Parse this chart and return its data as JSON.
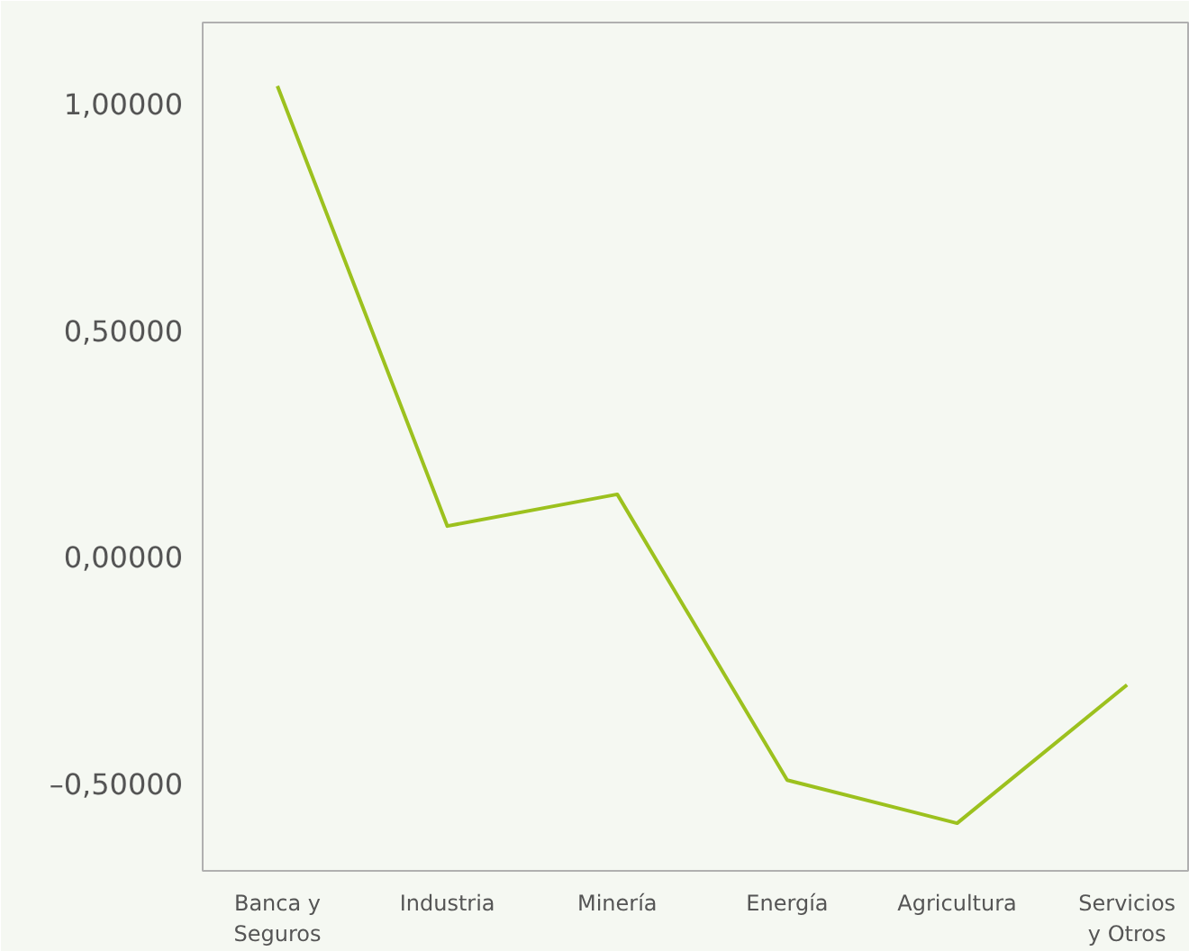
{
  "chart_data": {
    "type": "line",
    "categories": [
      "Banca y\nSeguros",
      "Industria",
      "Minería",
      "Energía",
      "Agricultura",
      "Servicios\ny Otros"
    ],
    "series": [
      {
        "color": "#9cc11e",
        "values": [
          1.04,
          0.07,
          0.14,
          -0.49,
          -0.585,
          -0.28
        ]
      }
    ],
    "ylim": [
      -0.69,
      1.18
    ],
    "yticks": [
      {
        "value": -0.5,
        "label": "–0,50000"
      },
      {
        "value": 0,
        "label": "0,00000"
      },
      {
        "value": 0.5,
        "label": "0,50000"
      },
      {
        "value": 1,
        "label": "1,00000"
      }
    ],
    "grid": false,
    "marker": "none",
    "line_style": "solid"
  }
}
